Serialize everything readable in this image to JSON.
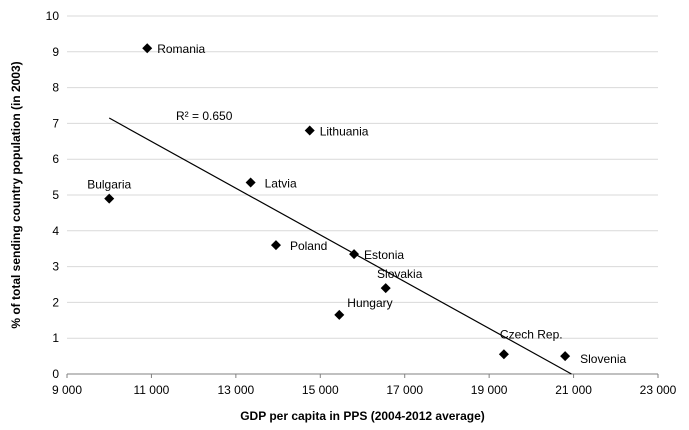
{
  "chart_data": {
    "type": "scatter",
    "title": "",
    "xlabel": "GDP per capita in PPS (2004-2012 average)",
    "ylabel": "% of total sending country population (in 2003)",
    "xlim": [
      9000,
      23000
    ],
    "ylim": [
      0,
      10
    ],
    "x_ticks": [
      9000,
      11000,
      13000,
      15000,
      17000,
      19000,
      21000,
      23000
    ],
    "x_tick_labels": [
      "9 000",
      "11 000",
      "13 000",
      "15 000",
      "17 000",
      "19 000",
      "21 000",
      "23 000"
    ],
    "y_ticks": [
      0,
      1,
      2,
      3,
      4,
      5,
      6,
      7,
      8,
      9,
      10
    ],
    "y_tick_labels": [
      "0",
      "1",
      "2",
      "3",
      "4",
      "5",
      "6",
      "7",
      "8",
      "9",
      "10"
    ],
    "grid": true,
    "points": [
      {
        "label": "Romania",
        "x": 10900,
        "y": 9.1
      },
      {
        "label": "Bulgaria",
        "x": 10000,
        "y": 4.9
      },
      {
        "label": "Lithuania",
        "x": 14750,
        "y": 6.8
      },
      {
        "label": "Latvia",
        "x": 13350,
        "y": 5.35
      },
      {
        "label": "Poland",
        "x": 13950,
        "y": 3.6
      },
      {
        "label": "Estonia",
        "x": 15800,
        "y": 3.35
      },
      {
        "label": "Slovakia",
        "x": 16550,
        "y": 2.4
      },
      {
        "label": "Hungary",
        "x": 15450,
        "y": 1.65
      },
      {
        "label": "Czech Rep.",
        "x": 19350,
        "y": 0.55
      },
      {
        "label": "Slovenia",
        "x": 20800,
        "y": 0.5
      }
    ],
    "trendline": {
      "type": "linear",
      "x": [
        10000,
        20950
      ],
      "y": [
        7.15,
        0
      ]
    },
    "annotations": [
      {
        "text": "R² = 0.650"
      }
    ]
  }
}
